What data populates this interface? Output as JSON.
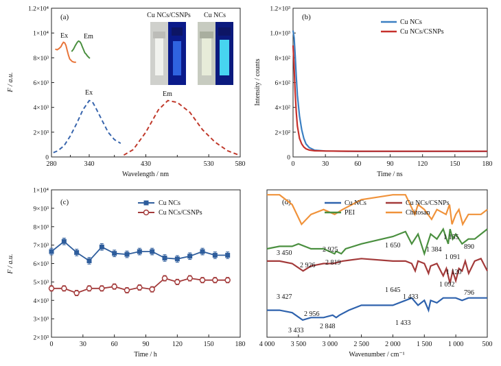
{
  "chart_data": [
    {
      "panel": "(a)",
      "type": "line",
      "xlabel": "Wavelength / nm",
      "ylabel": "F / a.u.",
      "xlim": [
        280,
        580
      ],
      "ylim": [
        0,
        12000
      ],
      "xticks": [
        "280",
        "340",
        "430",
        "530",
        "580"
      ],
      "xtick_values": [
        280,
        340,
        430,
        530,
        580
      ],
      "yticks": [
        "0",
        "2×10³",
        "4×10³",
        "6×10³",
        "8×10³",
        "1×10⁴",
        "1.2×10⁴"
      ],
      "ytick_values": [
        0,
        2000,
        4000,
        6000,
        8000,
        10000,
        12000
      ],
      "extra_xticks": [
        310,
        380,
        480
      ],
      "annotations": [
        "Ex",
        "Em",
        "Ex",
        "Em"
      ],
      "inset_labels": [
        "Cu NCs/CSNPs",
        "Cu NCs"
      ],
      "series": [
        {
          "color": "#e8753a",
          "style": "solid",
          "x": [
            286,
            289,
            292,
            295,
            297,
            299,
            301,
            303,
            305,
            307,
            309,
            311,
            313,
            316,
            319
          ],
          "y": [
            8700,
            8650,
            8750,
            8900,
            9100,
            9250,
            9200,
            9000,
            8600,
            8200,
            7900,
            7800,
            7700,
            7650,
            7650
          ]
        },
        {
          "color": "#4a8f3f",
          "style": "solid",
          "x": [
            312,
            315,
            318,
            321,
            323,
            325,
            327,
            329,
            331,
            333,
            335,
            337,
            339,
            341
          ],
          "y": [
            8500,
            8700,
            9000,
            9250,
            9350,
            9300,
            9150,
            8900,
            8650,
            8400,
            8300,
            8150,
            8050,
            7950
          ]
        },
        {
          "color": "#3865ad",
          "style": "dashed",
          "x": [
            283,
            290,
            300,
            310,
            320,
            330,
            340,
            345,
            350,
            360,
            370,
            380,
            390
          ],
          "y": [
            350,
            500,
            900,
            1700,
            2700,
            3800,
            4550,
            4450,
            4000,
            3000,
            2000,
            1400,
            1100
          ]
        },
        {
          "color": "#c0392b",
          "style": "dashed",
          "x": [
            395,
            410,
            430,
            450,
            465,
            480,
            500,
            520,
            540,
            560,
            578
          ],
          "y": [
            150,
            600,
            2000,
            3800,
            4550,
            4400,
            3600,
            2200,
            1200,
            500,
            150
          ]
        }
      ]
    },
    {
      "panel": "(b)",
      "type": "line",
      "xlabel": "Time / ns",
      "ylabel": "Intensity / counts",
      "xlim": [
        0,
        180
      ],
      "ylim": [
        0,
        1200
      ],
      "xticks": [
        "0",
        "30",
        "60",
        "90",
        "120",
        "150",
        "180"
      ],
      "xtick_values": [
        0,
        30,
        60,
        90,
        120,
        150,
        180
      ],
      "yticks": [
        "0",
        "2×10²",
        "4×10²",
        "6×10²",
        "8×10²",
        "1.0×10³",
        "1.2×10³"
      ],
      "ytick_values": [
        0,
        200,
        400,
        600,
        800,
        1000,
        1200
      ],
      "legend_position": "top-right",
      "series": [
        {
          "name": "Cu NCs",
          "color": "#3a7fc2",
          "x": [
            0,
            1,
            2,
            3,
            4,
            6,
            8,
            10,
            12,
            15,
            20,
            30,
            60,
            120,
            180
          ],
          "y": [
            1020,
            960,
            820,
            650,
            500,
            330,
            220,
            150,
            105,
            75,
            55,
            48,
            45,
            45,
            45
          ]
        },
        {
          "name": "Cu NCs/CSNPs",
          "color": "#c6302b",
          "x": [
            0,
            1,
            2,
            3,
            4,
            6,
            8,
            10,
            12,
            15,
            20,
            30,
            60,
            120,
            180
          ],
          "y": [
            900,
            720,
            520,
            360,
            250,
            150,
            105,
            80,
            66,
            56,
            50,
            48,
            46,
            46,
            46
          ]
        }
      ]
    },
    {
      "panel": "(c)",
      "type": "line",
      "xlabel": "Time / h",
      "ylabel": "F / a.u.",
      "xlim": [
        0,
        180
      ],
      "ylim": [
        2000,
        10000
      ],
      "xticks": [
        "0",
        "30",
        "60",
        "90",
        "120",
        "150",
        "180"
      ],
      "xtick_values": [
        0,
        30,
        60,
        90,
        120,
        150,
        180
      ],
      "yticks": [
        "2×10³",
        "3×10³",
        "4×10³",
        "5×10³",
        "6×10³",
        "7×10³",
        "8×10³",
        "9×10³",
        "1×10⁴"
      ],
      "ytick_values": [
        2000,
        3000,
        4000,
        5000,
        6000,
        7000,
        8000,
        9000,
        10000
      ],
      "legend_position": "top-center",
      "series": [
        {
          "name": "Cu NCs",
          "color": "#2e5d9c",
          "marker": "square",
          "x": [
            0,
            12,
            24,
            36,
            48,
            60,
            72,
            84,
            96,
            108,
            120,
            132,
            144,
            156,
            168
          ],
          "y": [
            6650,
            7200,
            6600,
            6150,
            6900,
            6550,
            6500,
            6650,
            6650,
            6300,
            6250,
            6400,
            6650,
            6450,
            6450
          ],
          "err": 180
        },
        {
          "name": "Cu NCs/CSNPs",
          "color": "#a33a3a",
          "marker": "circle",
          "x": [
            0,
            12,
            24,
            36,
            48,
            60,
            72,
            84,
            96,
            108,
            120,
            132,
            144,
            156,
            168
          ],
          "y": [
            4650,
            4650,
            4400,
            4650,
            4650,
            4750,
            4550,
            4700,
            4600,
            5200,
            5000,
            5200,
            5100,
            5100,
            5100
          ],
          "err": 150
        }
      ]
    },
    {
      "panel": "(d)",
      "type": "line",
      "xlabel": "Wavenumber / cm⁻¹",
      "xlim": [
        4000,
        500
      ],
      "xticks": [
        "4 000",
        "3 500",
        "3 000",
        "2 500",
        "2 000",
        "1 500",
        "1 000",
        "500"
      ],
      "xtick_values": [
        4000,
        3500,
        3000,
        2500,
        2000,
        1500,
        1000,
        500
      ],
      "legend_position": "top",
      "series": [
        {
          "name": "Chitosan",
          "color": "#f0923a",
          "x": [
            4000,
            3800,
            3600,
            3450,
            3300,
            3100,
            2925,
            2800,
            2500,
            2000,
            1800,
            1650,
            1600,
            1500,
            1384,
            1300,
            1155,
            1100,
            1060,
            1000,
            950,
            890,
            800,
            700,
            600,
            500
          ],
          "y": [
            78,
            78,
            74,
            66,
            70,
            72,
            70,
            72,
            76,
            78,
            78,
            70,
            74,
            72,
            68,
            72,
            70,
            74,
            66,
            70,
            72,
            66,
            70,
            70,
            70,
            72
          ]
        },
        {
          "name": "PEI",
          "color": "#4a8f3f",
          "x": [
            4000,
            3800,
            3600,
            3500,
            3300,
            3100,
            2926,
            2900,
            2819,
            2750,
            2500,
            2000,
            1800,
            1700,
            1600,
            1500,
            1400,
            1300,
            1200,
            1120,
            1091,
            1050,
            1000,
            900,
            800,
            700,
            600,
            500
          ],
          "y": [
            56,
            57,
            57,
            58,
            56,
            56,
            54,
            55,
            54,
            56,
            58,
            61,
            63,
            58,
            62,
            54,
            62,
            60,
            64,
            58,
            64,
            60,
            62,
            58,
            60,
            60,
            62,
            64
          ]
        },
        {
          "name": "Cu NCs/CSNPs",
          "color": "#a33a3a",
          "x": [
            4000,
            3800,
            3600,
            3427,
            3300,
            3100,
            2950,
            2800,
            2500,
            2000,
            1800,
            1700,
            1645,
            1600,
            1500,
            1433,
            1400,
            1300,
            1200,
            1150,
            1092,
            1050,
            1000,
            950,
            900,
            850,
            796,
            700,
            600,
            500
          ],
          "y": [
            51,
            51,
            50,
            47,
            49,
            50,
            50,
            51,
            52,
            51,
            51,
            50,
            47,
            51,
            50,
            46,
            49,
            50,
            45,
            48,
            42,
            47,
            43,
            48,
            47,
            51,
            46,
            51,
            52,
            47
          ]
        },
        {
          "name": "Cu NCs",
          "color": "#2e62ad",
          "x": [
            4000,
            3800,
            3600,
            3433,
            3300,
            3100,
            2956,
            2900,
            2848,
            2700,
            2500,
            2000,
            1800,
            1700,
            1600,
            1500,
            1433,
            1400,
            1300,
            1200,
            1100,
            1000,
            900,
            800,
            700,
            600,
            500
          ],
          "y": [
            31,
            31,
            30,
            27,
            28,
            28,
            29,
            28,
            29,
            31,
            33,
            33,
            35,
            36,
            33,
            35,
            31,
            35,
            34,
            36,
            36,
            36,
            35,
            36,
            36,
            36,
            36
          ]
        }
      ],
      "annotations": [
        "3 450",
        "2 925",
        "1 650",
        "1 384",
        "1 155",
        "890",
        "2 926",
        "2 819",
        "1 091",
        "1 120",
        "3 427",
        "1 645",
        "1 433",
        "1 092",
        "796",
        "2 956",
        "2 848",
        "3 433",
        "1 433"
      ]
    }
  ]
}
